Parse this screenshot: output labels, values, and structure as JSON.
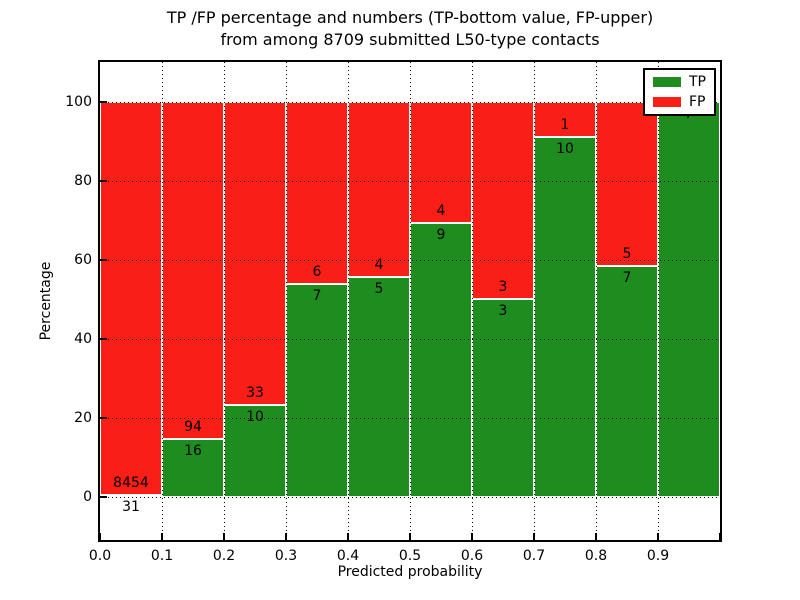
{
  "title": {
    "line1": "TP /FP percentage and numbers (TP-bottom value, FP-upper)",
    "line2": "from among 8709 submitted L50-type contacts"
  },
  "axes": {
    "xlabel": "Predicted probability",
    "ylabel": "Percentage",
    "yticks": [
      0,
      20,
      40,
      60,
      80,
      100
    ],
    "xtick_labels": [
      "0.0",
      "0.1",
      "0.2",
      "0.3",
      "0.4",
      "0.5",
      "0.6",
      "0.7",
      "0.8",
      "0.9"
    ],
    "ylim": [
      -11,
      110
    ],
    "xlim": [
      0,
      1
    ],
    "grid": "dotted"
  },
  "legend": {
    "items": [
      {
        "label": "TP",
        "color": "#1e8c1e"
      },
      {
        "label": "FP",
        "color": "#fa1f16"
      }
    ],
    "position": "upper-right"
  },
  "chart_data": {
    "type": "bar",
    "stacked": true,
    "normalized_to_percent": true,
    "title": "TP /FP percentage and numbers (TP-bottom value, FP-upper) from among 8709 submitted L50-type contacts",
    "xlabel": "Predicted probability",
    "ylabel": "Percentage",
    "total_contacts": 8709,
    "x_bin_start": [
      0.0,
      0.1,
      0.2,
      0.3,
      0.4,
      0.5,
      0.6,
      0.7,
      0.8,
      0.9
    ],
    "bin_width": 0.1,
    "series": [
      {
        "name": "TP",
        "color": "#1e8c1e",
        "counts": [
          31,
          16,
          10,
          7,
          5,
          9,
          3,
          10,
          7,
          7
        ]
      },
      {
        "name": "FP",
        "color": "#fa1f16",
        "counts": [
          8454,
          94,
          33,
          6,
          4,
          4,
          3,
          1,
          5,
          0
        ]
      }
    ],
    "tp_percent": [
      0.37,
      14.55,
      23.26,
      53.85,
      55.56,
      69.23,
      50.0,
      90.91,
      58.33,
      100.0
    ],
    "ylim": [
      -11,
      110
    ],
    "legend_position": "upper-right"
  }
}
